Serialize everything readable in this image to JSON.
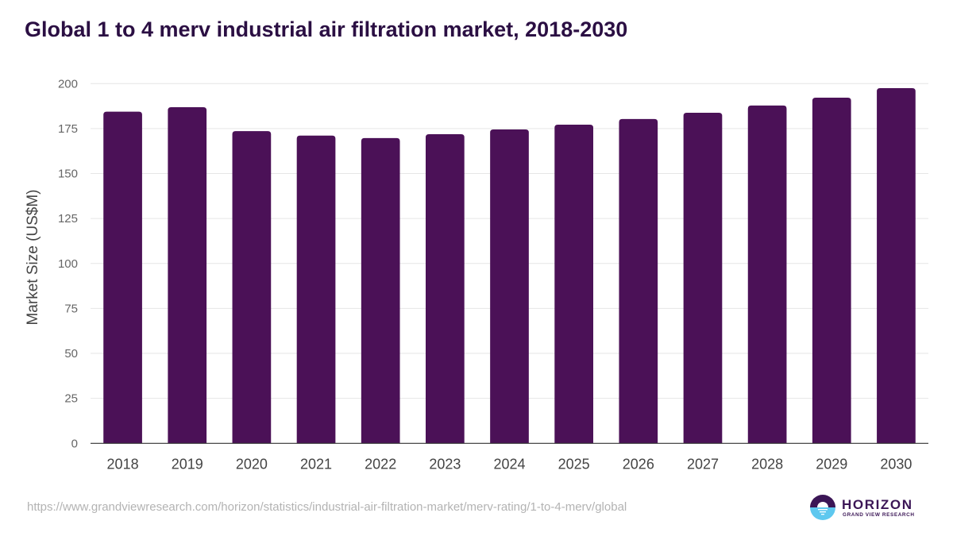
{
  "title": "Global 1 to 4 merv industrial air filtration market, 2018-2030",
  "source_url": "https://www.grandviewresearch.com/horizon/statistics/industrial-air-filtration-market/merv-rating/1-to-4-merv/global",
  "logo": {
    "icon": "horizon-logo-icon",
    "word": "HORIZON",
    "sub": "GRAND VIEW RESEARCH"
  },
  "colors": {
    "bar": "#4b1157",
    "title": "#2b0f43",
    "gridline": "#e6e6e6",
    "axis": "#333333",
    "logo_top": "#3b1656",
    "logo_bottom": "#5ec8ef"
  },
  "chart_data": {
    "type": "bar",
    "title": "Global 1 to 4 merv industrial air filtration market, 2018-2030",
    "xlabel": "",
    "ylabel": "Market Size (US$M)",
    "categories": [
      "2018",
      "2019",
      "2020",
      "2021",
      "2022",
      "2023",
      "2024",
      "2025",
      "2026",
      "2027",
      "2028",
      "2029",
      "2030"
    ],
    "values": [
      184.4,
      186.9,
      173.6,
      171.1,
      169.7,
      171.9,
      174.5,
      177.2,
      180.3,
      183.8,
      187.8,
      192.2,
      197.5
    ],
    "ylim": [
      0,
      200
    ],
    "yticks": [
      0,
      25,
      50,
      75,
      100,
      125,
      150,
      175,
      200
    ],
    "grid": true,
    "legend": "none"
  }
}
